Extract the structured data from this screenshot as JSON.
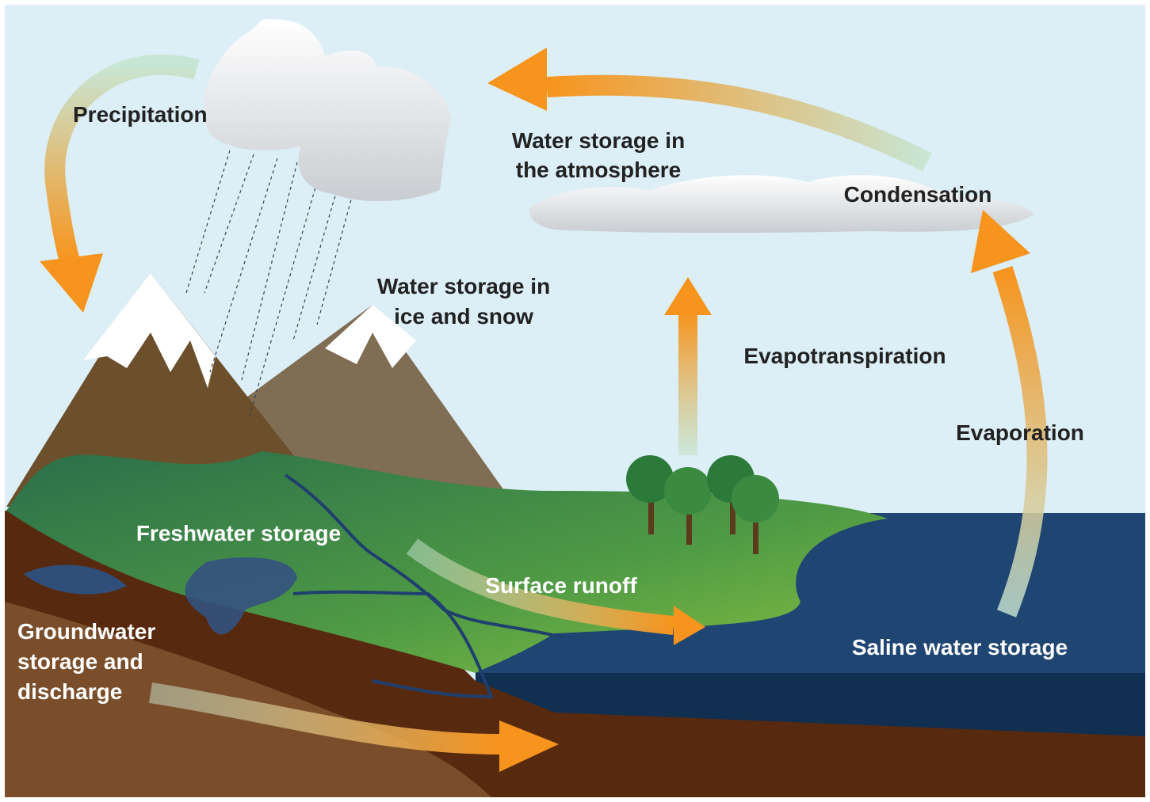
{
  "labels": {
    "precipitation": "Precipitation",
    "atmosphere": [
      "Water storage in",
      "the atmosphere"
    ],
    "condensation": "Condensation",
    "ice_snow": [
      "Water storage in",
      "ice and snow"
    ],
    "evapotranspiration": "Evapotranspiration",
    "evaporation": "Evaporation",
    "freshwater": "Freshwater storage",
    "runoff": "Surface runoff",
    "groundwater": [
      "Groundwater",
      "storage and",
      "discharge"
    ],
    "saline": "Saline water storage"
  }
}
